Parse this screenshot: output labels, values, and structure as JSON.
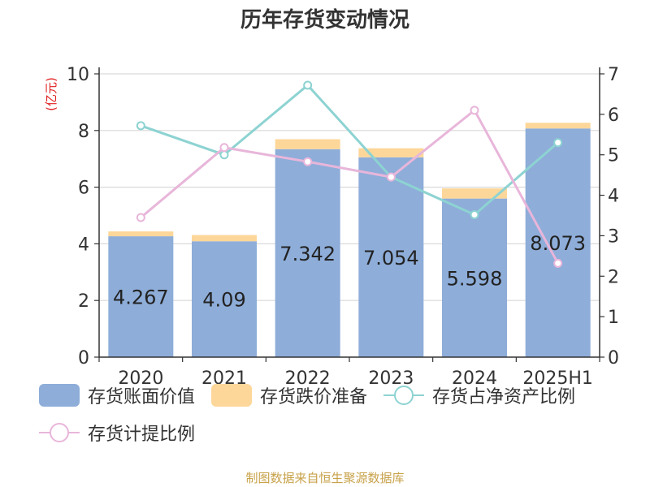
{
  "title": "历年存货变动情况",
  "footer": "制图数据来自恒生聚源数据库",
  "colors": {
    "book_value": "#8eadd9",
    "provision": "#fdd799",
    "ratio_net_assets": "#8dd3d2",
    "provision_ratio": "#e8b6da",
    "unit_label": "#e02020"
  },
  "legend": [
    {
      "label": "存货账面价值",
      "kind": "bar",
      "color": "#8eadd9"
    },
    {
      "label": "存货跌价准备",
      "kind": "bar",
      "color": "#fdd799"
    },
    {
      "label": "存货占净资产比例",
      "kind": "line",
      "color": "#8dd3d2"
    },
    {
      "label": "存货计提比例",
      "kind": "line",
      "color": "#e8b6da"
    }
  ],
  "chart_data": {
    "type": "bar",
    "title": "历年存货变动情况",
    "categories": [
      "2020",
      "2021",
      "2022",
      "2023",
      "2024",
      "2025H1"
    ],
    "left_axis": {
      "unit": "(亿元)",
      "ylim": [
        0,
        10
      ],
      "ticks": [
        0,
        2,
        4,
        6,
        8,
        10
      ]
    },
    "right_axis": {
      "ylim": [
        0,
        7
      ],
      "ticks": [
        0,
        1,
        2,
        3,
        4,
        5,
        6,
        7
      ]
    },
    "grid": true,
    "legend_position": "bottom",
    "series": [
      {
        "name": "存货账面价值",
        "type": "bar",
        "stack": "inventory",
        "axis": "left",
        "values": [
          4.267,
          4.09,
          7.342,
          7.054,
          5.598,
          8.073
        ],
        "labels": [
          "4.267",
          "4.09",
          "7.342",
          "7.054",
          "5.598",
          "8.073"
        ]
      },
      {
        "name": "存货跌价准备",
        "type": "bar",
        "stack": "inventory",
        "axis": "left",
        "values": [
          0.17,
          0.22,
          0.35,
          0.32,
          0.36,
          0.2
        ]
      },
      {
        "name": "存货占净资产比例",
        "type": "line",
        "axis": "right",
        "values": [
          5.72,
          5.0,
          6.72,
          4.45,
          3.52,
          5.3
        ]
      },
      {
        "name": "存货计提比例",
        "type": "line",
        "axis": "right",
        "values": [
          3.45,
          5.18,
          4.83,
          4.45,
          6.1,
          2.32
        ]
      }
    ]
  }
}
